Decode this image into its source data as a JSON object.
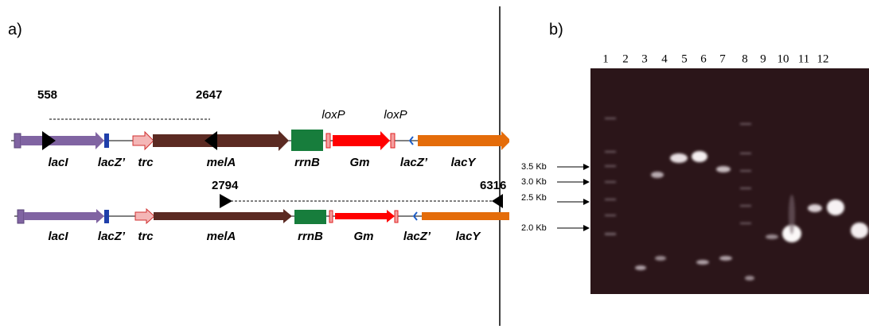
{
  "panel_a": {
    "label": "a)",
    "construct1": {
      "primers": [
        "558",
        "2647"
      ],
      "loxp": [
        "loxP",
        "loxP"
      ],
      "genes": [
        "lacI",
        "lacZ’",
        "trc",
        "melA",
        "rrnB",
        "Gm",
        "lacZ’",
        "lacY"
      ]
    },
    "construct2": {
      "primers": [
        "2794",
        "6316"
      ],
      "genes": [
        "lacI",
        "lacZ’",
        "trc",
        "melA",
        "rrnB",
        "Gm",
        "lacZ’",
        "lacY"
      ]
    }
  },
  "panel_b": {
    "label": "b)",
    "lanes": [
      "1",
      "2",
      "3",
      "4",
      "5",
      "6",
      "7",
      "8",
      "9",
      "10",
      "11",
      "12"
    ],
    "markers": [
      "3.5 Kb",
      "3.0 Kb",
      "2.5 Kb",
      "2.0 Kb"
    ]
  }
}
